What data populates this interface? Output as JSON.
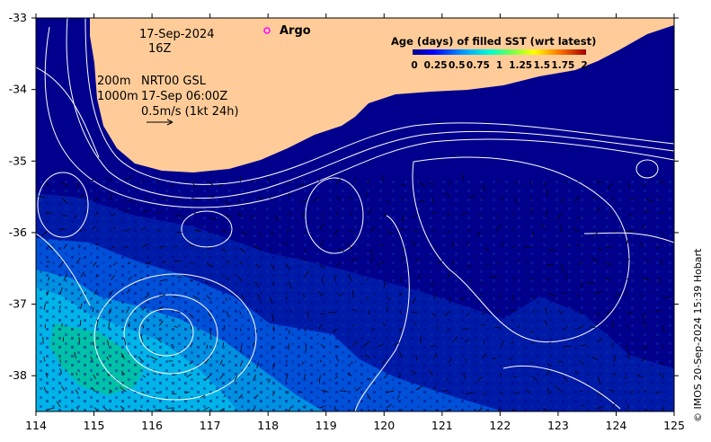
{
  "map": {
    "date_label": "17-Sep-2024",
    "time_label": "16Z",
    "argo_label": "Argo",
    "depth_label_1": "200m",
    "depth_label_2": "1000m",
    "product_label": "NRT00 GSL",
    "product_time": "17-Sep 06:00Z",
    "vector_scale_label": "0.5m/s (1kt 24h)",
    "colorbar_title": "Age (days) of filled SST (wrt latest)",
    "colorbar_ticks": [
      "0",
      "0.25",
      "0.5",
      "0.75",
      "1",
      "1.25",
      "1.5",
      "1.75",
      "2"
    ],
    "x_ticks": [
      "114",
      "115",
      "116",
      "117",
      "118",
      "119",
      "120",
      "121",
      "122",
      "123",
      "124",
      "125"
    ],
    "y_ticks": [
      "-33",
      "-34",
      "-35",
      "-36",
      "-37",
      "-38"
    ],
    "credit": "© IMOS 20-Sep-2024 15:39 Hobart",
    "lon_range": [
      114,
      125
    ],
    "lat_range": [
      -38.5,
      -33
    ]
  },
  "colors": {
    "land": "#ffcc99",
    "ocean_deep": "#00008c",
    "ocean_mid": "#001aa8",
    "ocean_blue": "#0050d8",
    "ocean_light": "#0090e0",
    "ocean_cyan": "#00b4e8",
    "ocean_teal": "#00c0a8",
    "contour": "#ffffff",
    "argo": "#ff00ff"
  }
}
